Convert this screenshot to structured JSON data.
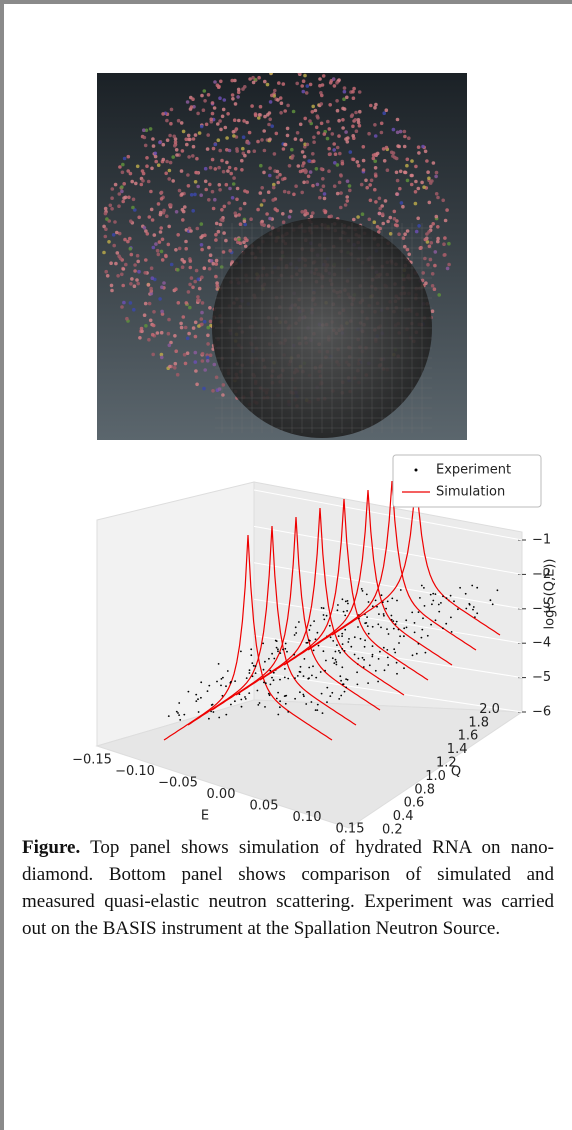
{
  "figure": {
    "plot": {
      "legend": [
        "Experiment",
        "Simulation"
      ],
      "z_label": "log(S(Q,E))",
      "z_ticks": [
        "−1",
        "−2",
        "−3",
        "−4",
        "−5",
        "−6"
      ],
      "x_label": "E",
      "x_ticks": [
        "−0.15",
        "−0.10",
        "−0.05",
        "0.00",
        "0.05",
        "0.10",
        "0.15"
      ],
      "y_label": "Q",
      "y_ticks": [
        "0.2",
        "0.4",
        "0.6",
        "0.8",
        "1.0",
        "1.2",
        "1.4",
        "1.6",
        "1.8",
        "2.0"
      ]
    },
    "caption": {
      "lead": "Figure.",
      "text": "Top panel shows simulation of hydrated RNA on nano-diamond. Bottom panel shows comparison of simulated and measured quasi-elastic neutron scattering. Experiment was carried out on the BASIS instrument at the Spallation Neutron Source."
    }
  }
}
